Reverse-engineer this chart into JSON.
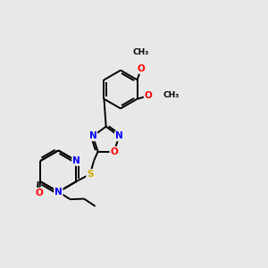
{
  "bg_color": "#e8e8e8",
  "atom_colors": {
    "C": "#000000",
    "N": "#0000ff",
    "O": "#ff0000",
    "S": "#ccaa00",
    "H": "#000000"
  },
  "bond_color": "#000000",
  "bond_width": 1.4,
  "fig_size": [
    3.0,
    3.0
  ],
  "dpi": 100
}
